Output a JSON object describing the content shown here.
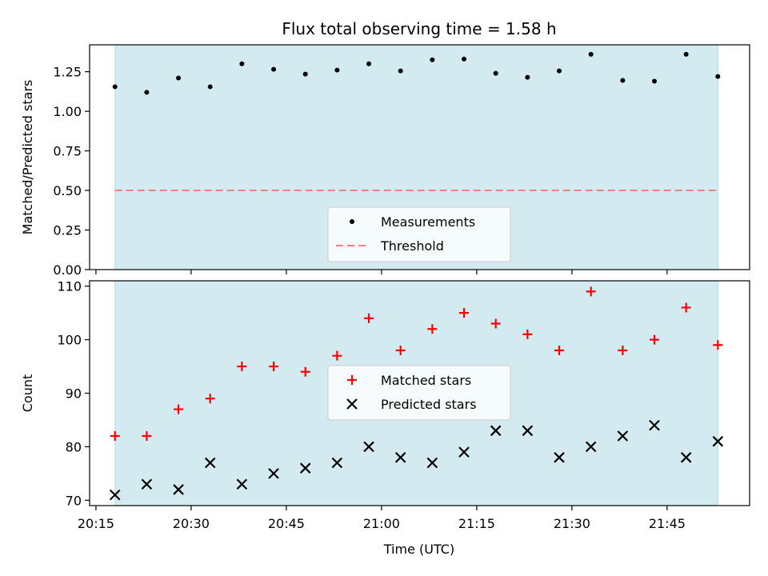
{
  "chart_data": [
    {
      "type": "scatter",
      "title": "Flux total observing time = 1.58 h",
      "xlabel": "",
      "ylabel": "Matched/Predicted stars",
      "ylim": [
        0,
        1.42
      ],
      "yticks": [
        "0.00",
        "0.25",
        "0.50",
        "0.75",
        "1.00",
        "1.25"
      ],
      "ytick_values": [
        0,
        0.25,
        0.5,
        0.75,
        1.0,
        1.25
      ],
      "shaded_span": [
        "20:18",
        "21:53"
      ],
      "shade_color": "#d3eaf0",
      "threshold": {
        "name": "Threshold",
        "value": 0.5,
        "color": "#f08080"
      },
      "series": [
        {
          "name": "Measurements",
          "marker": "dot",
          "color": "#000000",
          "x": [
            "20:18",
            "20:23",
            "20:28",
            "20:33",
            "20:38",
            "20:43",
            "20:48",
            "20:53",
            "20:58",
            "21:03",
            "21:08",
            "21:13",
            "21:18",
            "21:23",
            "21:28",
            "21:33",
            "21:38",
            "21:43",
            "21:48",
            "21:53"
          ],
          "y": [
            1.155,
            1.12,
            1.21,
            1.155,
            1.3,
            1.265,
            1.235,
            1.26,
            1.3,
            1.255,
            1.325,
            1.33,
            1.24,
            1.215,
            1.255,
            1.36,
            1.195,
            1.19,
            1.36,
            1.22
          ]
        }
      ],
      "legend": {
        "position": "lower-center",
        "entries": [
          "Measurements",
          "Threshold"
        ]
      }
    },
    {
      "type": "scatter",
      "title": "",
      "xlabel": "Time (UTC)",
      "ylabel": "Count",
      "ylim": [
        69,
        111
      ],
      "yticks": [
        "70",
        "80",
        "90",
        "100",
        "110"
      ],
      "ytick_values": [
        70,
        80,
        90,
        100,
        110
      ],
      "xlim": [
        "20:14",
        "21:58"
      ],
      "xticks": [
        "20:15",
        "20:30",
        "20:45",
        "21:00",
        "21:15",
        "21:30",
        "21:45"
      ],
      "shaded_span": [
        "20:18",
        "21:53"
      ],
      "shade_color": "#d3eaf0",
      "series": [
        {
          "name": "Matched stars",
          "marker": "plus",
          "color": "#ff0000",
          "x": [
            "20:18",
            "20:23",
            "20:28",
            "20:33",
            "20:38",
            "20:43",
            "20:48",
            "20:53",
            "20:58",
            "21:03",
            "21:08",
            "21:13",
            "21:18",
            "21:23",
            "21:28",
            "21:33",
            "21:38",
            "21:43",
            "21:48",
            "21:53"
          ],
          "y": [
            82,
            82,
            87,
            89,
            95,
            95,
            94,
            97,
            104,
            98,
            102,
            105,
            103,
            101,
            98,
            109,
            98,
            100,
            106,
            99
          ]
        },
        {
          "name": "Predicted stars",
          "marker": "x",
          "color": "#000000",
          "x": [
            "20:18",
            "20:23",
            "20:28",
            "20:33",
            "20:38",
            "20:43",
            "20:48",
            "20:53",
            "20:58",
            "21:03",
            "21:08",
            "21:13",
            "21:18",
            "21:23",
            "21:28",
            "21:33",
            "21:38",
            "21:43",
            "21:48",
            "21:53"
          ],
          "y": [
            71,
            73,
            72,
            77,
            73,
            75,
            76,
            77,
            80,
            78,
            77,
            79,
            83,
            83,
            78,
            80,
            82,
            84,
            78,
            81
          ]
        }
      ],
      "legend": {
        "position": "center",
        "entries": [
          "Matched stars",
          "Predicted stars"
        ]
      }
    }
  ]
}
